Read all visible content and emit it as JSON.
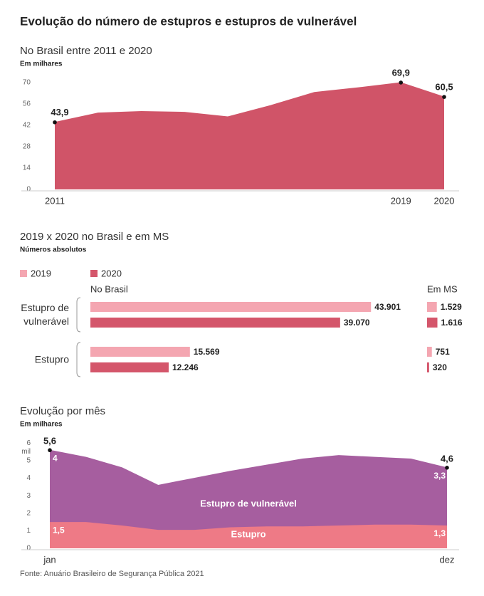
{
  "title": "Evolução do número de estupros e estupros de vulnerável",
  "source": "Fonte: Anuário Brasileiro de Segurança Pública 2021",
  "chart_data": [
    {
      "type": "area",
      "title": "No Brasil entre 2011 e 2020",
      "subtitle": "Em milhares",
      "x": [
        2011,
        2012,
        2013,
        2014,
        2015,
        2016,
        2017,
        2018,
        2019,
        2020
      ],
      "values": [
        43.9,
        50,
        51,
        50.5,
        47.5,
        55,
        63.5,
        66.5,
        69.9,
        60.5
      ],
      "value_labels": [
        "43,9",
        null,
        null,
        null,
        null,
        null,
        null,
        null,
        "69,9",
        "60,5"
      ],
      "color": "#d05468",
      "xlim": [
        2011,
        2020
      ],
      "xticks": [
        2011,
        2019,
        2020
      ],
      "ylim": [
        0,
        75
      ],
      "yticks": [
        0,
        14,
        28,
        42,
        56,
        70
      ],
      "grid": false
    },
    {
      "type": "bar",
      "orientation": "horizontal",
      "title": "2019 x 2020 no Brasil e em MS",
      "subtitle": "Números absolutos",
      "categories": [
        "Estupro de vulnerável",
        "Estupro"
      ],
      "series": [
        {
          "name": "2019",
          "color": "#f4a6b1"
        },
        {
          "name": "2020",
          "color": "#d4566b"
        }
      ],
      "xlim": [
        0,
        50000
      ],
      "panels": [
        {
          "title": "No Brasil",
          "values": [
            [
              43901,
              15569
            ],
            [
              39070,
              12246
            ]
          ],
          "value_labels": [
            [
              "43.901",
              "15.569"
            ],
            [
              "39.070",
              "12.246"
            ]
          ]
        },
        {
          "title": "Em MS",
          "values": [
            [
              1529,
              751
            ],
            [
              1616,
              320
            ]
          ],
          "value_labels": [
            [
              "1.529",
              "751"
            ],
            [
              "1.616",
              "320"
            ]
          ]
        }
      ]
    },
    {
      "type": "stacked_area",
      "title": "Evolução por mês",
      "subtitle": "Em milhares",
      "y_unit": "mil",
      "categories": [
        "jan",
        null,
        null,
        null,
        null,
        null,
        null,
        null,
        null,
        null,
        null,
        "dez"
      ],
      "series": [
        {
          "name": "Estupro",
          "color": "#ee7a86",
          "values": [
            1.5,
            1.5,
            1.3,
            1.05,
            1.05,
            1.2,
            1.25,
            1.25,
            1.3,
            1.35,
            1.35,
            1.3
          ],
          "value_labels": [
            "1,5",
            null,
            null,
            null,
            null,
            null,
            null,
            null,
            null,
            null,
            null,
            "1,3"
          ]
        },
        {
          "name": "Estupro de vulnerável",
          "color": "#a65e9f",
          "values": [
            4.1,
            3.7,
            3.3,
            2.55,
            2.95,
            3.2,
            3.5,
            3.85,
            4.0,
            3.85,
            3.75,
            3.3
          ],
          "value_labels": [
            "4",
            null,
            null,
            null,
            null,
            null,
            null,
            null,
            null,
            null,
            null,
            "3,3"
          ]
        }
      ],
      "total_labels": [
        "5,6",
        null,
        null,
        null,
        null,
        null,
        null,
        null,
        null,
        null,
        null,
        "4,6"
      ],
      "ylim": [
        0,
        6.3
      ],
      "yticks": [
        0,
        1,
        2,
        3,
        4,
        5,
        6
      ],
      "grid": false
    }
  ]
}
